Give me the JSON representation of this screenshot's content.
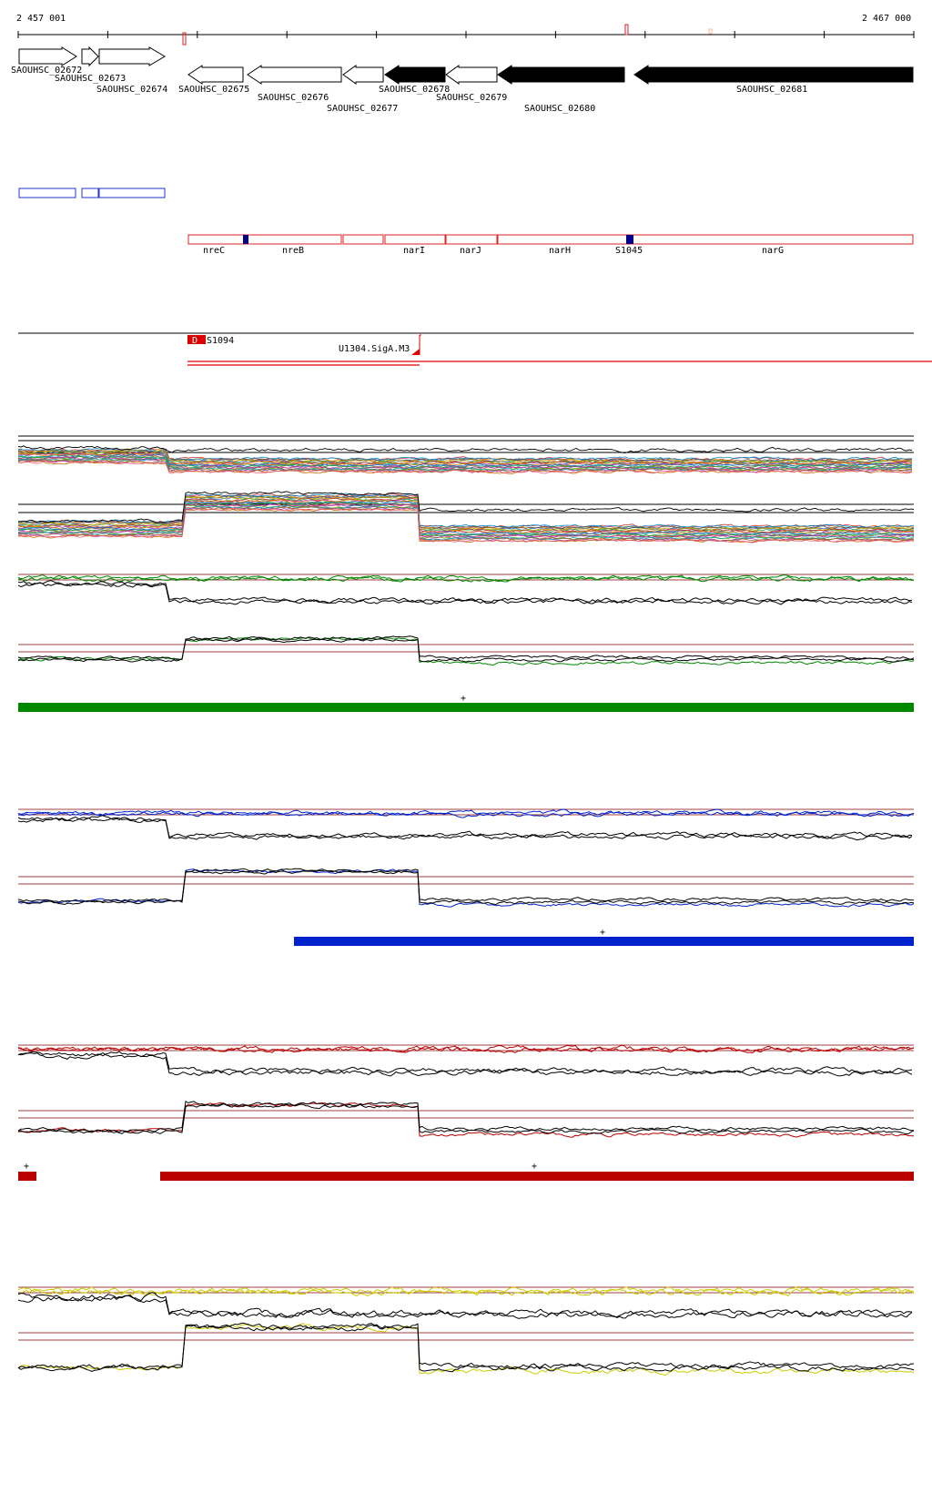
{
  "ruler": {
    "start_label": "2 457 001",
    "end_label": "2 467 000"
  },
  "genes": [
    {
      "id": "SAOUHSC_02672",
      "strand": "+",
      "filled": false
    },
    {
      "id": "SAOUHSC_02673",
      "strand": "+",
      "filled": false
    },
    {
      "id": "SAOUHSC_02674",
      "strand": "+",
      "filled": false
    },
    {
      "id": "SAOUHSC_02675",
      "strand": "-",
      "filled": false
    },
    {
      "id": "SAOUHSC_02676",
      "strand": "-",
      "filled": false
    },
    {
      "id": "SAOUHSC_02677",
      "strand": "-",
      "filled": false
    },
    {
      "id": "SAOUHSC_02678",
      "strand": "-",
      "filled": true
    },
    {
      "id": "SAOUHSC_02679",
      "strand": "-",
      "filled": false
    },
    {
      "id": "SAOUHSC_02680",
      "strand": "-",
      "filled": true
    },
    {
      "id": "SAOUHSC_02681",
      "strand": "-",
      "filled": true
    }
  ],
  "gene_names": [
    "nreC",
    "nreB",
    "narI",
    "narJ",
    "narH",
    "S1045",
    "narG"
  ],
  "features": {
    "d_label": "D",
    "s1094_label": "S1094",
    "sigA_label": "U1304.SigA.M3"
  },
  "segment_marks": {
    "green": "+",
    "blue": "+",
    "red_1": "+",
    "red_2": "+"
  },
  "colors": {
    "green": "#008800",
    "blue": "#0022cc",
    "red": "#bb0000",
    "yellow": "#cccc00",
    "outline_red": "#dd2222",
    "outline_blue": "#2233cc",
    "marker_navy": "#000088"
  }
}
